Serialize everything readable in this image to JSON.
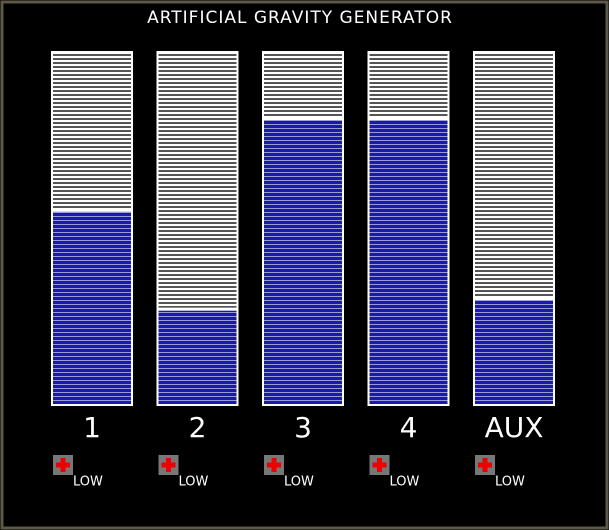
{
  "panel": {
    "title": "ARTIFICIAL GRAVITY GENERATOR",
    "gauges": [
      {
        "label": "1",
        "level": 0.55,
        "status": "LOW"
      },
      {
        "label": "2",
        "level": 0.27,
        "status": "LOW"
      },
      {
        "label": "3",
        "level": 0.81,
        "status": "LOW"
      },
      {
        "label": "4",
        "level": 0.81,
        "status": "LOW"
      },
      {
        "label": "AUX",
        "level": 0.3,
        "status": "LOW"
      }
    ]
  }
}
